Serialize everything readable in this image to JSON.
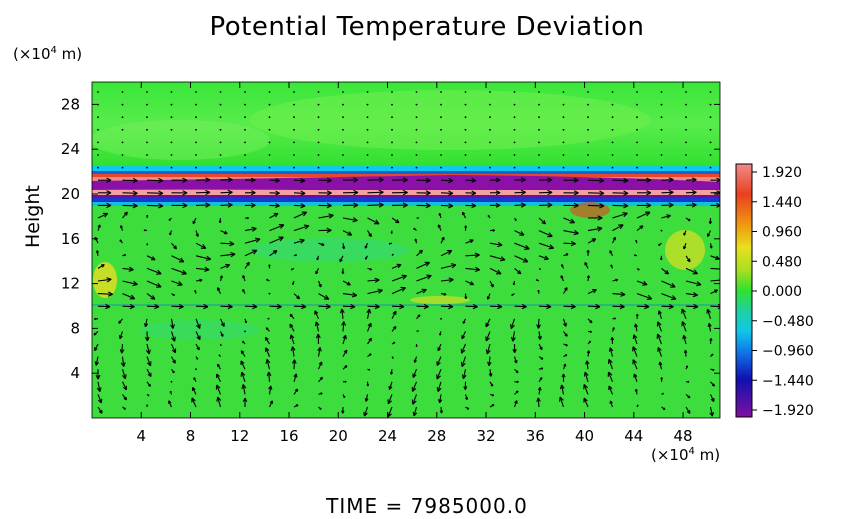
{
  "chart_data": {
    "type": "heatmap",
    "title": "Potential Temperature Deviation",
    "ylabel": "Height",
    "x_unit_prefix": "(×10",
    "x_unit_exp": "4",
    "x_unit_suffix": " m)",
    "y_unit_prefix": "(×10",
    "y_unit_exp": "4",
    "y_unit_suffix": " m)",
    "x_ticks": [
      4,
      8,
      12,
      16,
      20,
      24,
      28,
      32,
      36,
      40,
      44,
      48
    ],
    "y_ticks": [
      4,
      8,
      12,
      16,
      20,
      24,
      28
    ],
    "xlim": [
      0,
      51
    ],
    "ylim": [
      0,
      30
    ],
    "colorbar": {
      "ticks": [
        "1.920",
        "1.440",
        "0.960",
        "0.480",
        "0.000",
        "−0.480",
        "−0.960",
        "−1.440",
        "−1.920"
      ],
      "values": [
        1.92,
        1.44,
        0.96,
        0.48,
        0.0,
        -0.48,
        -0.96,
        -1.44,
        -1.92
      ],
      "range": [
        -1.92,
        1.92
      ]
    },
    "background_value": 0.0,
    "anomaly_bands": [
      {
        "y_center": 20.2,
        "description_value_range": [
          -1.92,
          1.92
        ]
      },
      {
        "y_center": 10.0,
        "description_value_range": [
          -0.48,
          0.48
        ]
      }
    ],
    "wind_vectors": true
  },
  "footer": {
    "time_label": "TIME  =  7985000.0"
  }
}
